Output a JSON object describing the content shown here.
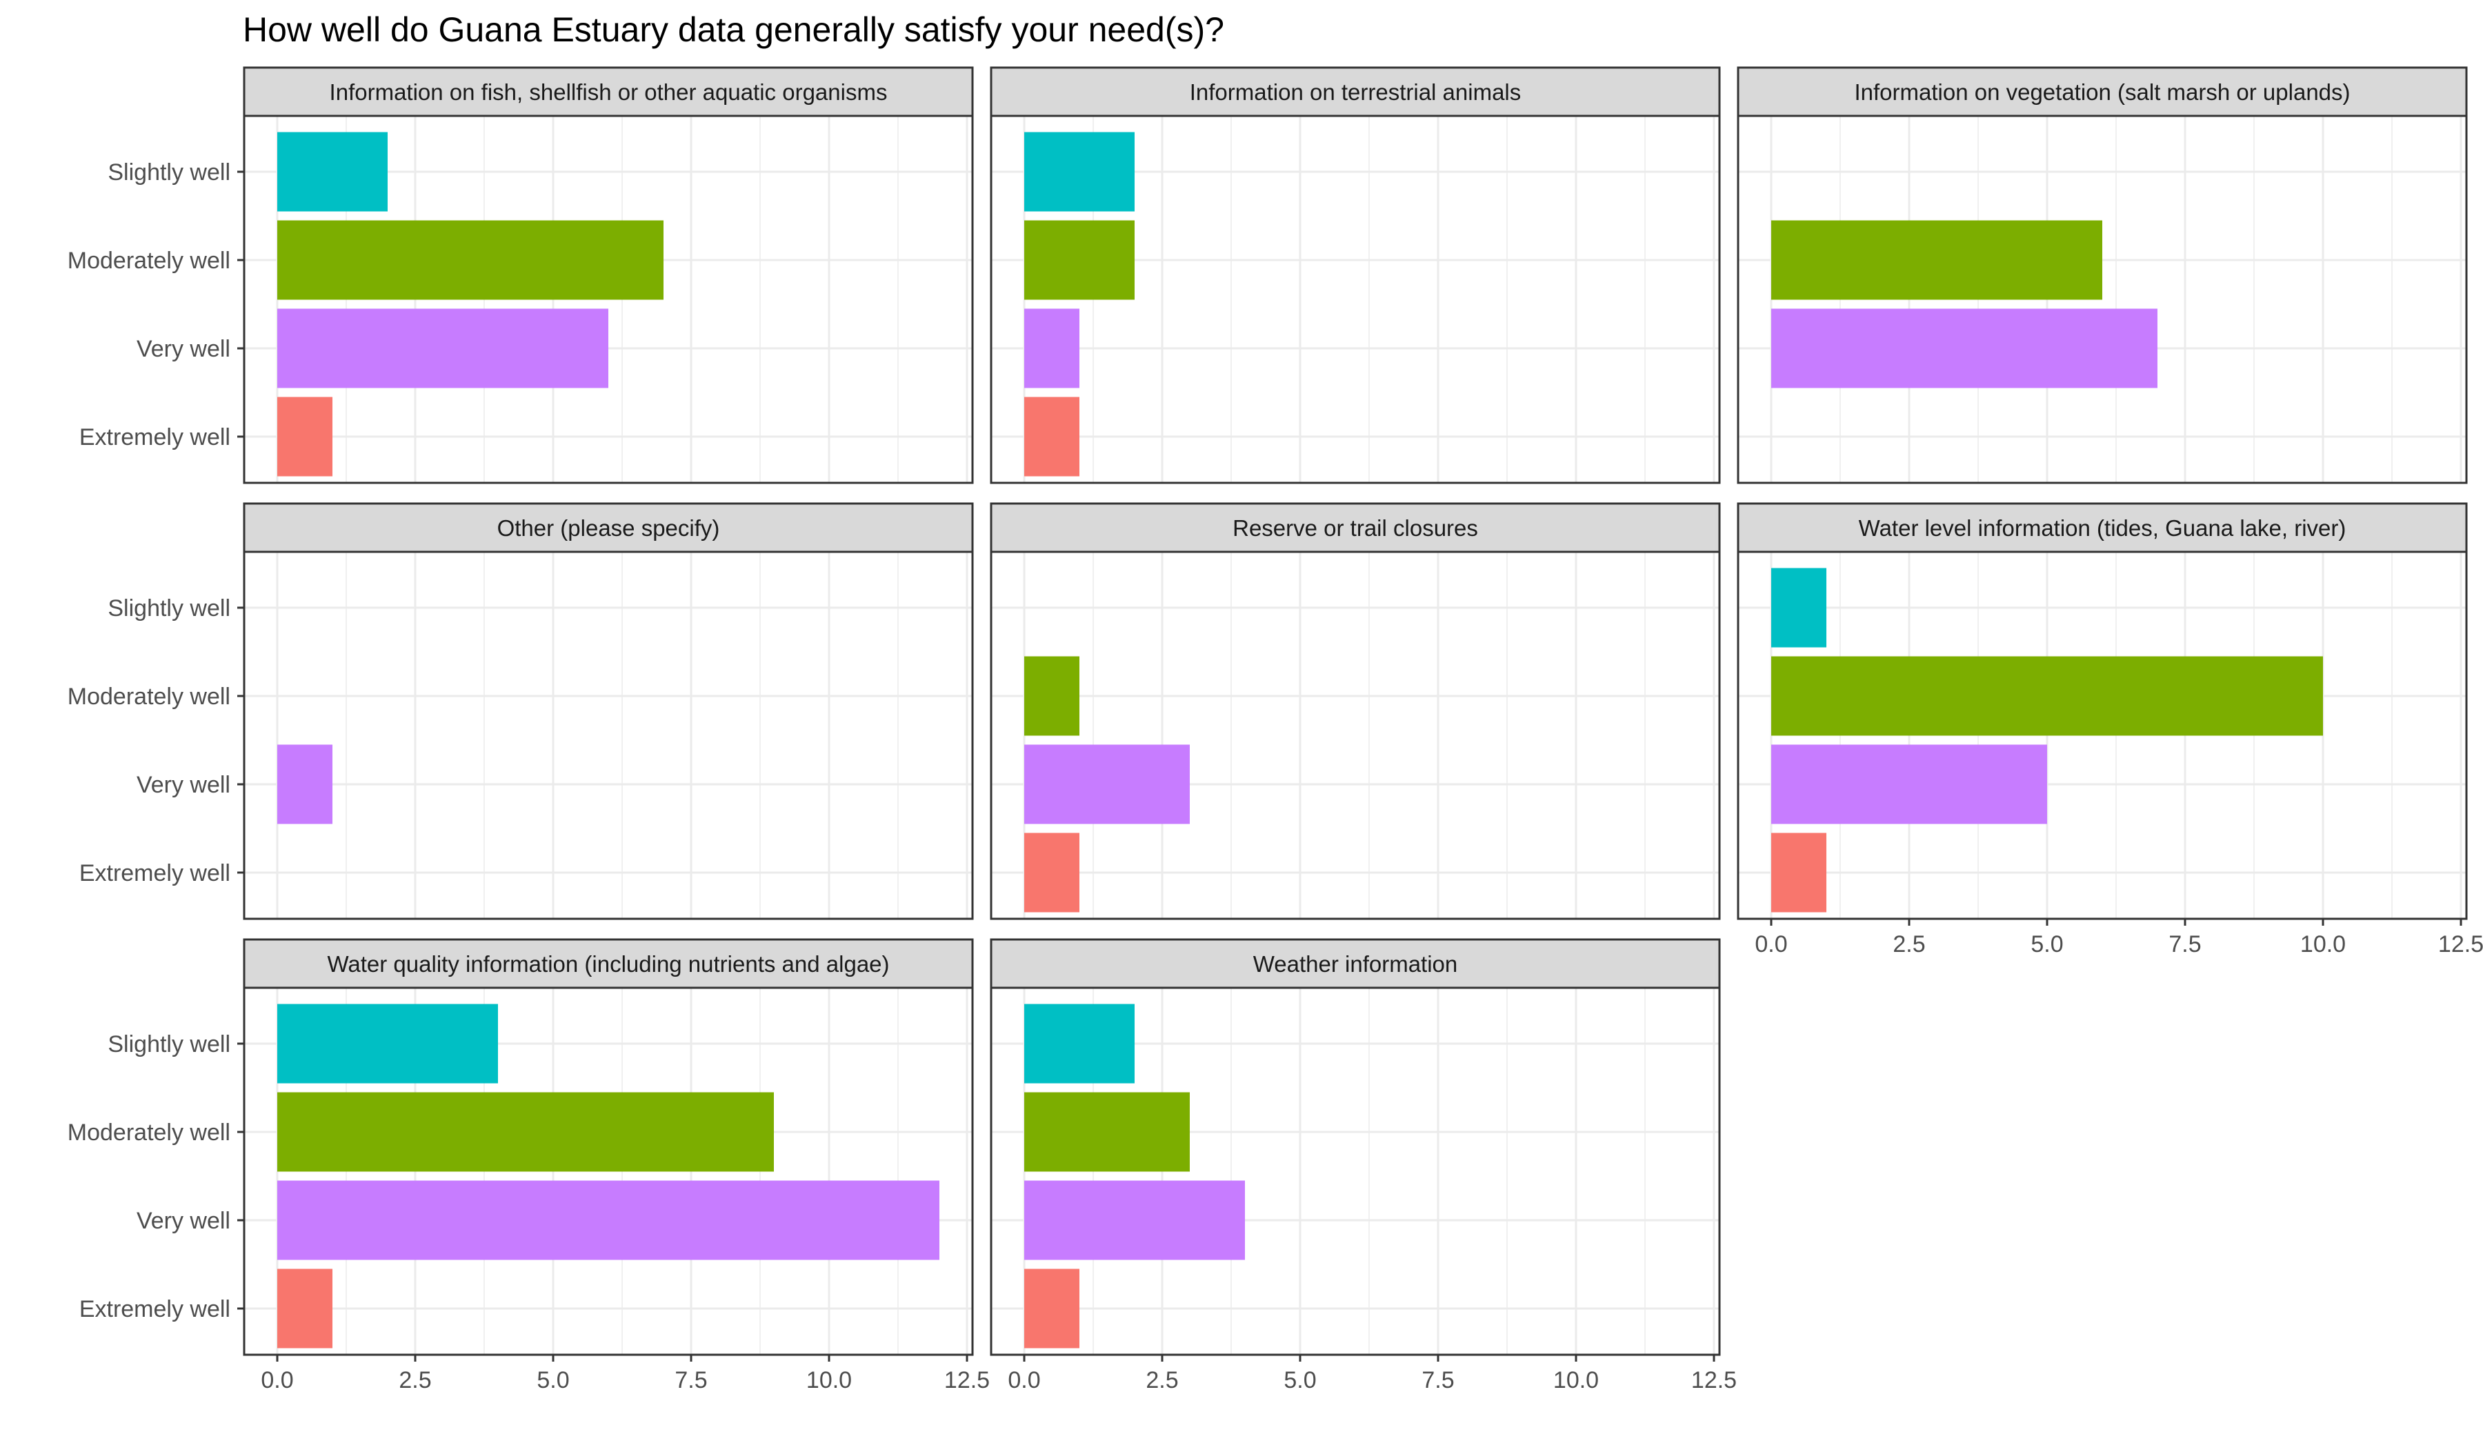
{
  "chart_data": {
    "type": "bar",
    "orientation": "horizontal",
    "title": "How well do Guana Estuary data generally satisfy your need(s)?",
    "xlabel": "",
    "ylabel": "",
    "xlim": [
      -0.6,
      12.6
    ],
    "x_ticks": [
      0,
      2.5,
      5,
      7.5,
      10,
      12.5
    ],
    "x_tick_labels": [
      "0.0",
      "2.5",
      "5.0",
      "7.5",
      "10.0",
      "12.5"
    ],
    "categories": [
      "Slightly well",
      "Moderately well",
      "Very well",
      "Extremely well"
    ],
    "category_colors": [
      "#00BFC4",
      "#7CAE00",
      "#C77CFF",
      "#F8766D"
    ],
    "grid": true,
    "legend": "none",
    "panels": [
      {
        "title": "Information on fish, shellfish or other aquatic organisms",
        "values": [
          2,
          7,
          6,
          1
        ]
      },
      {
        "title": "Information on terrestrial animals",
        "values": [
          2,
          2,
          1,
          1
        ]
      },
      {
        "title": "Information on vegetation (salt marsh or uplands)",
        "values": [
          null,
          6,
          7,
          null
        ]
      },
      {
        "title": "Other (please specify)",
        "values": [
          null,
          null,
          1,
          null
        ]
      },
      {
        "title": "Reserve or trail closures",
        "values": [
          null,
          1,
          3,
          1
        ]
      },
      {
        "title": "Water level information (tides, Guana lake, river)",
        "values": [
          1,
          10,
          5,
          1
        ]
      },
      {
        "title": "Water quality information (including nutrients and algae)",
        "values": [
          4,
          9,
          12,
          1
        ]
      },
      {
        "title": "Weather information",
        "values": [
          2,
          3,
          4,
          1
        ]
      }
    ]
  }
}
